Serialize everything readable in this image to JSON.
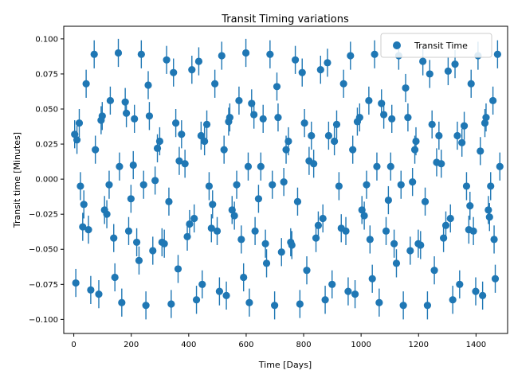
{
  "chart_data": {
    "type": "scatter",
    "title": "Transit Timing variations",
    "xlabel": "Time [Days]",
    "ylabel": "Transit time [Minutes]",
    "xlim": [
      -35,
      1510
    ],
    "ylim": [
      -0.11,
      0.109
    ],
    "xticks": [
      0,
      200,
      400,
      600,
      800,
      1000,
      1200,
      1400
    ],
    "yticks": [
      -0.1,
      -0.075,
      -0.05,
      -0.025,
      0.0,
      0.025,
      0.05,
      0.075,
      0.1
    ],
    "xtick_labels": [
      "0",
      "200",
      "400",
      "600",
      "800",
      "1000",
      "1200",
      "1400"
    ],
    "ytick_labels": [
      "−0.100",
      "−0.075",
      "−0.050",
      "−0.025",
      "0.000",
      "0.025",
      "0.050",
      "0.075",
      "0.100"
    ],
    "grid": false,
    "legend_position": "top-right",
    "error_bar": 0.01,
    "color": "#1f77b4",
    "series": [
      {
        "name": "Transit Time",
        "points": [
          [
            3,
            0.032
          ],
          [
            7,
            -0.074
          ],
          [
            11,
            0.028
          ],
          [
            19,
            0.04
          ],
          [
            23,
            -0.005
          ],
          [
            31,
            -0.034
          ],
          [
            35,
            -0.018
          ],
          [
            43,
            0.068
          ],
          [
            51,
            -0.036
          ],
          [
            59,
            -0.079
          ],
          [
            71,
            0.089
          ],
          [
            75,
            0.021
          ],
          [
            87,
            -0.082
          ],
          [
            95,
            0.042
          ],
          [
            99,
            0.045
          ],
          [
            107,
            -0.022
          ],
          [
            115,
            -0.025
          ],
          [
            123,
            -0.004
          ],
          [
            127,
            0.056
          ],
          [
            139,
            -0.042
          ],
          [
            143,
            -0.07
          ],
          [
            155,
            0.09
          ],
          [
            159,
            0.009
          ],
          [
            167,
            -0.088
          ],
          [
            179,
            0.055
          ],
          [
            183,
            0.047
          ],
          [
            191,
            -0.037
          ],
          [
            199,
            -0.014
          ],
          [
            207,
            0.01
          ],
          [
            211,
            0.043
          ],
          [
            219,
            -0.045
          ],
          [
            227,
            -0.058
          ],
          [
            235,
            0.089
          ],
          [
            243,
            -0.004
          ],
          [
            251,
            -0.09
          ],
          [
            259,
            0.067
          ],
          [
            263,
            0.045
          ],
          [
            275,
            -0.051
          ],
          [
            283,
            -0.001
          ],
          [
            291,
            0.022
          ],
          [
            299,
            0.027
          ],
          [
            307,
            -0.045
          ],
          [
            315,
            -0.046
          ],
          [
            323,
            0.085
          ],
          [
            331,
            -0.016
          ],
          [
            339,
            -0.089
          ],
          [
            347,
            0.076
          ],
          [
            355,
            0.04
          ],
          [
            363,
            -0.064
          ],
          [
            367,
            0.013
          ],
          [
            375,
            0.032
          ],
          [
            387,
            0.011
          ],
          [
            395,
            -0.041
          ],
          [
            403,
            -0.032
          ],
          [
            411,
            0.078
          ],
          [
            419,
            -0.028
          ],
          [
            427,
            -0.086
          ],
          [
            435,
            0.084
          ],
          [
            443,
            0.031
          ],
          [
            447,
            -0.075
          ],
          [
            455,
            0.027
          ],
          [
            463,
            0.039
          ],
          [
            471,
            -0.005
          ],
          [
            479,
            -0.035
          ],
          [
            483,
            -0.018
          ],
          [
            491,
            0.068
          ],
          [
            499,
            -0.037
          ],
          [
            507,
            -0.08
          ],
          [
            515,
            0.088
          ],
          [
            523,
            0.021
          ],
          [
            531,
            -0.083
          ],
          [
            539,
            0.041
          ],
          [
            543,
            0.044
          ],
          [
            551,
            -0.022
          ],
          [
            559,
            -0.026
          ],
          [
            567,
            -0.004
          ],
          [
            575,
            0.056
          ],
          [
            583,
            -0.043
          ],
          [
            591,
            -0.07
          ],
          [
            599,
            0.09
          ],
          [
            607,
            0.009
          ],
          [
            611,
            -0.088
          ],
          [
            619,
            0.054
          ],
          [
            627,
            0.046
          ],
          [
            631,
            -0.037
          ],
          [
            643,
            -0.014
          ],
          [
            651,
            0.009
          ],
          [
            659,
            0.043
          ],
          [
            667,
            -0.046
          ],
          [
            671,
            -0.06
          ],
          [
            683,
            0.089
          ],
          [
            691,
            -0.004
          ],
          [
            699,
            -0.09
          ],
          [
            707,
            0.066
          ],
          [
            711,
            0.044
          ],
          [
            723,
            -0.052
          ],
          [
            731,
            -0.002
          ],
          [
            739,
            0.021
          ],
          [
            747,
            0.027
          ],
          [
            755,
            -0.045
          ],
          [
            759,
            -0.047
          ],
          [
            771,
            0.085
          ],
          [
            779,
            -0.016
          ],
          [
            787,
            -0.089
          ],
          [
            795,
            0.076
          ],
          [
            803,
            0.04
          ],
          [
            811,
            -0.065
          ],
          [
            819,
            0.013
          ],
          [
            827,
            0.031
          ],
          [
            835,
            0.011
          ],
          [
            843,
            -0.042
          ],
          [
            851,
            -0.033
          ],
          [
            859,
            0.078
          ],
          [
            867,
            -0.028
          ],
          [
            875,
            -0.086
          ],
          [
            883,
            0.083
          ],
          [
            887,
            0.031
          ],
          [
            899,
            -0.075
          ],
          [
            907,
            0.027
          ],
          [
            915,
            0.039
          ],
          [
            923,
            -0.005
          ],
          [
            931,
            -0.035
          ],
          [
            939,
            0.068
          ],
          [
            947,
            -0.037
          ],
          [
            955,
            -0.08
          ],
          [
            963,
            0.088
          ],
          [
            971,
            0.021
          ],
          [
            979,
            -0.082
          ],
          [
            987,
            0.041
          ],
          [
            995,
            0.044
          ],
          [
            1003,
            -0.022
          ],
          [
            1011,
            -0.026
          ],
          [
            1019,
            -0.004
          ],
          [
            1027,
            0.056
          ],
          [
            1031,
            -0.043
          ],
          [
            1039,
            -0.071
          ],
          [
            1047,
            0.089
          ],
          [
            1055,
            0.009
          ],
          [
            1063,
            -0.088
          ],
          [
            1071,
            0.054
          ],
          [
            1079,
            0.046
          ],
          [
            1087,
            -0.037
          ],
          [
            1095,
            -0.015
          ],
          [
            1103,
            0.009
          ],
          [
            1107,
            0.043
          ],
          [
            1115,
            -0.046
          ],
          [
            1123,
            -0.06
          ],
          [
            1131,
            0.088
          ],
          [
            1139,
            -0.004
          ],
          [
            1147,
            -0.09
          ],
          [
            1155,
            0.065
          ],
          [
            1163,
            0.044
          ],
          [
            1171,
            -0.051
          ],
          [
            1179,
            -0.002
          ],
          [
            1187,
            0.021
          ],
          [
            1191,
            0.027
          ],
          [
            1199,
            -0.046
          ],
          [
            1207,
            -0.047
          ],
          [
            1215,
            0.084
          ],
          [
            1223,
            -0.016
          ],
          [
            1231,
            -0.09
          ],
          [
            1239,
            0.075
          ],
          [
            1247,
            0.039
          ],
          [
            1255,
            -0.065
          ],
          [
            1263,
            0.012
          ],
          [
            1271,
            0.031
          ],
          [
            1279,
            0.011
          ],
          [
            1287,
            -0.042
          ],
          [
            1295,
            -0.033
          ],
          [
            1303,
            0.077
          ],
          [
            1311,
            -0.028
          ],
          [
            1319,
            -0.086
          ],
          [
            1327,
            0.082
          ],
          [
            1335,
            0.031
          ],
          [
            1343,
            -0.075
          ],
          [
            1351,
            0.026
          ],
          [
            1359,
            0.038
          ],
          [
            1367,
            -0.005
          ],
          [
            1375,
            -0.036
          ],
          [
            1379,
            -0.019
          ],
          [
            1383,
            0.068
          ],
          [
            1391,
            -0.037
          ],
          [
            1399,
            -0.08
          ],
          [
            1407,
            0.088
          ],
          [
            1415,
            0.02
          ],
          [
            1423,
            -0.083
          ],
          [
            1431,
            0.04
          ],
          [
            1435,
            0.044
          ],
          [
            1443,
            -0.022
          ],
          [
            1447,
            -0.027
          ],
          [
            1451,
            -0.005
          ],
          [
            1459,
            0.056
          ],
          [
            1463,
            -0.043
          ],
          [
            1467,
            -0.071
          ],
          [
            1475,
            0.089
          ],
          [
            1483,
            0.009
          ]
        ]
      }
    ]
  }
}
